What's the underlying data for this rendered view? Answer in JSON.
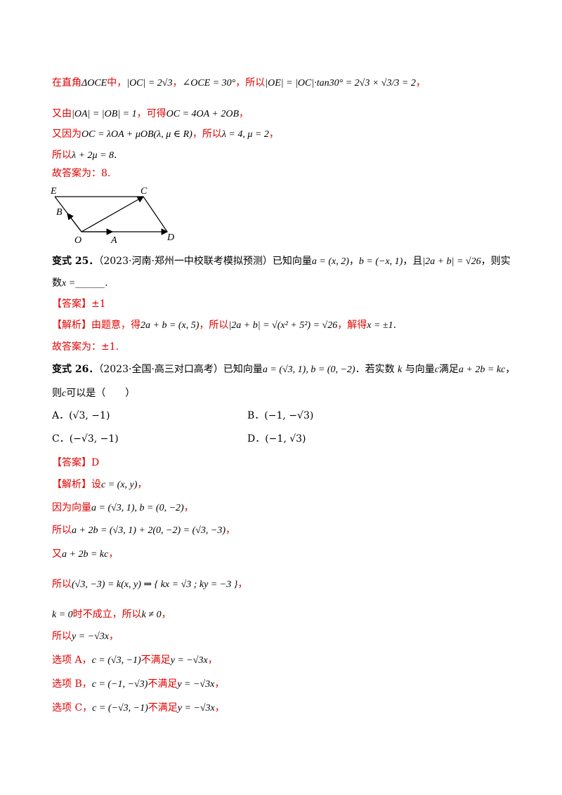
{
  "lines": [
    {
      "parts": [
        {
          "c": "red",
          "t": "在直角"
        },
        {
          "c": "math",
          "t": "ΔOCE"
        },
        {
          "c": "red",
          "t": "中，"
        },
        {
          "c": "math",
          "t": "|OC| = 2√3"
        },
        {
          "c": "red",
          "t": "，"
        },
        {
          "c": "math",
          "t": "∠OCE = 30°"
        },
        {
          "c": "red",
          "t": "，所以"
        },
        {
          "c": "math",
          "t": "|OE| = |OC|·tan30° = 2√3 × √3/3 = 2"
        },
        {
          "c": "red",
          "t": "，"
        }
      ]
    },
    {
      "parts": [
        {
          "c": "red",
          "t": "又由"
        },
        {
          "c": "math",
          "t": "|OA| = |OB| = 1"
        },
        {
          "c": "red",
          "t": "，可得"
        },
        {
          "c": "math",
          "t": "OC = 4OA + 2OB"
        },
        {
          "c": "red",
          "t": "，"
        }
      ]
    },
    {
      "parts": [
        {
          "c": "red",
          "t": "又因为"
        },
        {
          "c": "math",
          "t": "OC = λOA + μOB(λ, μ ∈ R)"
        },
        {
          "c": "red",
          "t": "，所以"
        },
        {
          "c": "math",
          "t": "λ = 4, μ = 2"
        },
        {
          "c": "red",
          "t": "，"
        }
      ]
    },
    {
      "parts": [
        {
          "c": "red",
          "t": "所以"
        },
        {
          "c": "math",
          "t": "λ + 2μ = 8"
        },
        {
          "c": "blk",
          "t": "."
        }
      ]
    },
    {
      "parts": [
        {
          "c": "red",
          "t": "故答案为：8."
        }
      ]
    },
    {
      "parts": [
        {
          "c": "bold",
          "t": "变式 25．"
        },
        {
          "c": "blk",
          "t": "（2023·河南·郑州一中校联考模拟预测）已知向量"
        },
        {
          "c": "math",
          "t": "a = (x, 2)"
        },
        {
          "c": "blk",
          "t": "，"
        },
        {
          "c": "math",
          "t": "b = (−x, 1)"
        },
        {
          "c": "blk",
          "t": "，且"
        },
        {
          "c": "math",
          "t": "|2a + b| = √26"
        },
        {
          "c": "blk",
          "t": "，则实"
        }
      ]
    },
    {
      "parts": [
        {
          "c": "blk",
          "t": "数"
        },
        {
          "c": "math",
          "t": "x ="
        },
        {
          "c": "blk",
          "t": "______."
        }
      ]
    },
    {
      "parts": [
        {
          "c": "red",
          "t": "【答案】±1"
        }
      ]
    },
    {
      "parts": [
        {
          "c": "red",
          "t": "【解析】由题意，得"
        },
        {
          "c": "math",
          "t": "2a + b = (x, 5)"
        },
        {
          "c": "red",
          "t": "，所以"
        },
        {
          "c": "math",
          "t": "|2a + b| = √(x² + 5²) = √26"
        },
        {
          "c": "red",
          "t": "，解得"
        },
        {
          "c": "math",
          "t": "x = ±1"
        },
        {
          "c": "blk",
          "t": "."
        }
      ]
    },
    {
      "parts": [
        {
          "c": "red",
          "t": "故答案为：±1."
        }
      ]
    },
    {
      "parts": [
        {
          "c": "bold",
          "t": "变式 26．"
        },
        {
          "c": "blk",
          "t": "（2023·全国·高三对口高考）已知向量"
        },
        {
          "c": "math",
          "t": "a = (√3, 1), b = (0, −2)"
        },
        {
          "c": "blk",
          "t": "．若实数 "
        },
        {
          "c": "math",
          "t": "k"
        },
        {
          "c": "blk",
          "t": " 与向量"
        },
        {
          "c": "math",
          "t": "c"
        },
        {
          "c": "blk",
          "t": "满足"
        },
        {
          "c": "math",
          "t": "a + 2b = kc"
        },
        {
          "c": "blk",
          "t": "，"
        }
      ]
    },
    {
      "parts": [
        {
          "c": "blk",
          "t": "则"
        },
        {
          "c": "math",
          "t": "c"
        },
        {
          "c": "blk",
          "t": "可以是（　　）"
        }
      ]
    },
    {
      "parts": [
        {
          "c": "red",
          "t": "【答案】D"
        }
      ]
    },
    {
      "parts": [
        {
          "c": "red",
          "t": "【解析】设"
        },
        {
          "c": "math",
          "t": "c = (x, y)"
        },
        {
          "c": "red",
          "t": "，"
        }
      ]
    },
    {
      "parts": [
        {
          "c": "red",
          "t": "因为向量"
        },
        {
          "c": "math",
          "t": "a = (√3, 1), b = (0, −2)"
        },
        {
          "c": "red",
          "t": "，"
        }
      ]
    },
    {
      "parts": [
        {
          "c": "red",
          "t": "所以"
        },
        {
          "c": "math",
          "t": "a + 2b = (√3, 1) + 2(0, −2) = (√3, −3)"
        },
        {
          "c": "red",
          "t": "，"
        }
      ]
    },
    {
      "parts": [
        {
          "c": "red",
          "t": "又"
        },
        {
          "c": "math",
          "t": "a + 2b = kc"
        },
        {
          "c": "red",
          "t": "，"
        }
      ]
    },
    {
      "parts": [
        {
          "c": "red",
          "t": "所以"
        },
        {
          "c": "math",
          "t": "(√3, −3) = k(x, y) ⇒ { kx = √3 ; ky = −3 }"
        },
        {
          "c": "red",
          "t": "，"
        }
      ]
    },
    {
      "parts": [
        {
          "c": "math",
          "t": "k = 0"
        },
        {
          "c": "red",
          "t": "时不成立，所以"
        },
        {
          "c": "math",
          "t": "k ≠ 0"
        },
        {
          "c": "red",
          "t": "，"
        }
      ]
    },
    {
      "parts": [
        {
          "c": "red",
          "t": "所以"
        },
        {
          "c": "math",
          "t": "y = −√3x"
        },
        {
          "c": "red",
          "t": "，"
        }
      ]
    },
    {
      "parts": [
        {
          "c": "red",
          "t": "选项 A，"
        },
        {
          "c": "math",
          "t": "c = (√3, −1)"
        },
        {
          "c": "red",
          "t": "不满足"
        },
        {
          "c": "math",
          "t": "y = −√3x"
        },
        {
          "c": "red",
          "t": "，"
        }
      ]
    },
    {
      "parts": [
        {
          "c": "red",
          "t": "选项 B，"
        },
        {
          "c": "math",
          "t": "c = (−1, −√3)"
        },
        {
          "c": "red",
          "t": "不满足"
        },
        {
          "c": "math",
          "t": "y = −√3x"
        },
        {
          "c": "red",
          "t": "，"
        }
      ]
    },
    {
      "parts": [
        {
          "c": "red",
          "t": "选项 C，"
        },
        {
          "c": "math",
          "t": "c = (−√3, −1)"
        },
        {
          "c": "red",
          "t": "不满足"
        },
        {
          "c": "math",
          "t": "y = −√3x"
        },
        {
          "c": "red",
          "t": "，"
        }
      ]
    }
  ],
  "options": [
    {
      "label": "A．(√3, −1)"
    },
    {
      "label": "B．(−1, −√3)"
    },
    {
      "label": "C．(−√3, −1)"
    },
    {
      "label": "D．(−1, √3)"
    }
  ],
  "figure": {
    "points": [
      "E",
      "C",
      "B",
      "O",
      "A",
      "D"
    ]
  }
}
